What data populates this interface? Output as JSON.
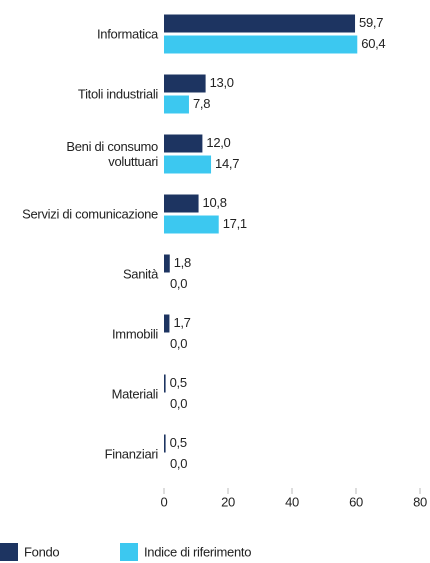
{
  "chart_data": {
    "type": "bar",
    "orientation": "horizontal",
    "categories": [
      "Informatica",
      "Titoli industriali",
      "Beni di consumo\nvoluttuari",
      "Servizi di comunicazione",
      "Sanità",
      "Immobili",
      "Materiali",
      "Finanziari"
    ],
    "series": [
      {
        "name": "Fondo",
        "color": "#1d3461",
        "values": [
          59.7,
          13.0,
          12.0,
          10.8,
          1.8,
          1.7,
          0.5,
          0.5
        ],
        "value_labels": [
          "59,7",
          "13,0",
          "12,0",
          "10,8",
          "1,8",
          "1,7",
          "0,5",
          "0,5"
        ]
      },
      {
        "name": "Indice di riferimento",
        "color": "#3cc8f0",
        "values": [
          60.4,
          7.8,
          14.7,
          17.1,
          0.0,
          0.0,
          0.0,
          0.0
        ],
        "value_labels": [
          "60,4",
          "7,8",
          "14,7",
          "17,1",
          "0,0",
          "0,0",
          "0,0",
          "0,0"
        ]
      }
    ],
    "xlim": [
      0,
      80
    ],
    "xticks": [
      0,
      20,
      40,
      60,
      80
    ],
    "legend": "bottom-left"
  }
}
